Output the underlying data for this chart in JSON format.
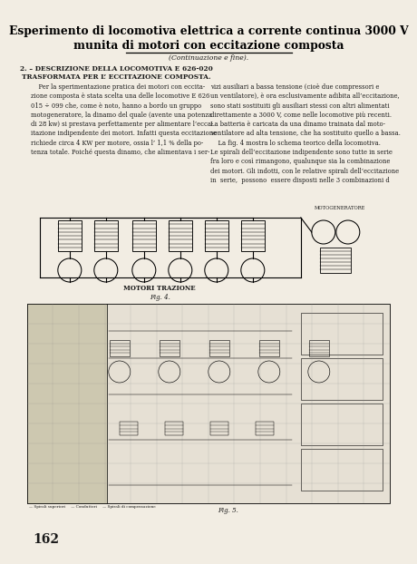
{
  "title_line1": "Esperimento di locomotiva elettrica a corrente continua 3000 V",
  "title_line2": "munita di motori con eccitazione composta",
  "subtitle": "(Continuazione e fine).",
  "section_heading1": "2. – DESCRIZIONE DELLA LOCOMOTIVA E 626-020",
  "section_heading2": "TRASFORMATA PER L’ ECCITAZIONE COMPOSTA.",
  "col1_text": "    Per la sperimentazione pratica dei motori con eccita-\nzione composta è stata scelta una delle locomotive E 626\n015 ÷ 099 che, come è noto, hanno a bordo un gruppo\nmotogeneratore, la dinamo del quale (avente una potenza\ndi 28 kw) si prestava perfettamente per alimentare l’ecca-\nitazione indipendente dei motori. Infatti questa eccitazione\nrichiede circa 4 KW per motore, ossia l’ 1,1 % della po-\ntenza totale. Poiché questa dinamo, che alimentava i ser-",
  "col2_text": "vizi ausiliari a bassa tensione (cioè due compressori e\nun ventilatore), è ora esclusivamente adibita all’eccitazione,\nsono stati sostituiti gli ausiliari stessi con altri alimentati\ndirettamente a 3000 V, come nelle locomotive più recenti.\nLa batteria è caricata da una dinamo trainata dal moto-\nventilatore ad alta tensione, che ha sostituito quello a bassa.\n    La fig. 4 mostra lo schema teorico della locomotiva.\nLe spirali dell’eccitazione indipendente sono tutte in serie\nfra loro e così rimangono, qualunque sia la combinazione\ndei motori. Gli indotti, con le relative spirali dell’eccitazione\nin  serie,  possono  essere disposti nelle 3 combinazioni d",
  "fig4_label": "MOTORI TRAZIONE",
  "fig4_caption": "Fig. 4.",
  "motogeneratore_label": "MOTOGENERATORE",
  "fig5_caption": "Fig. 5.",
  "page_number": "162",
  "bg_color": "#f2ede3",
  "text_color": "#1a1a1a",
  "title_color": "#000000"
}
